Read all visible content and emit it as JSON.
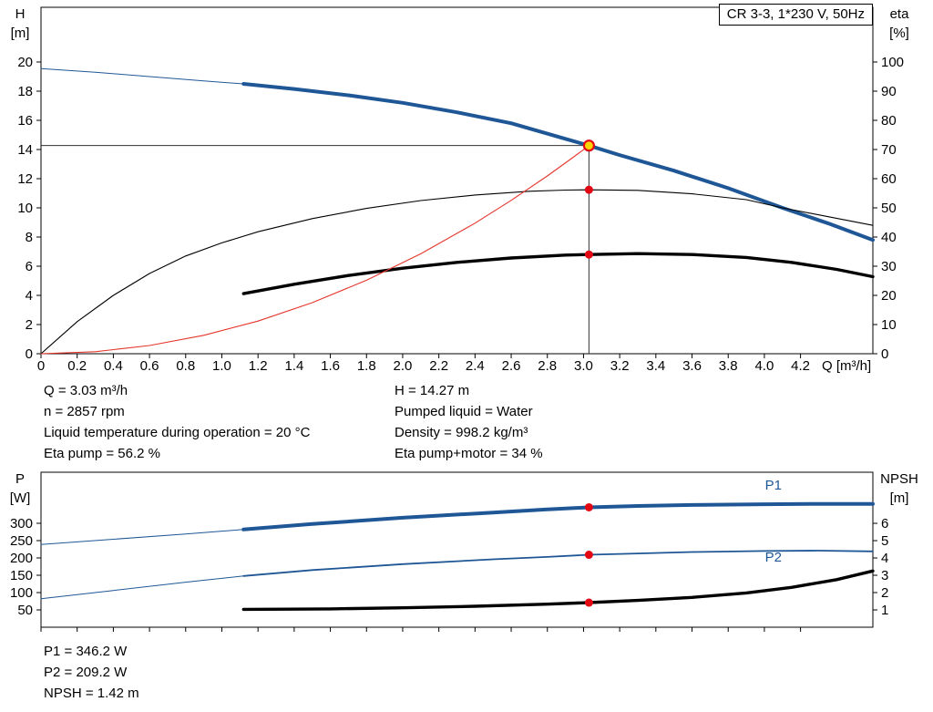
{
  "title_box": "CR 3-3, 1*230 V, 50Hz",
  "info_top": {
    "left": [
      "Q = 3.03 m³/h",
      "n = 2857 rpm",
      "Liquid temperature during operation = 20 °C",
      "Eta pump = 56.2 %"
    ],
    "right": [
      "H = 14.27 m",
      "Pumped liquid = Water",
      "Density = 998.2 kg/m³",
      "Eta pump+motor = 34 %"
    ]
  },
  "info_bottom": [
    "P1 = 346.2 W",
    "P2 = 209.2 W",
    "NPSH = 1.42 m"
  ],
  "colors": {
    "curve_blue": "#1f5796",
    "curve_black": "#000000",
    "curve_red": "#e5352b",
    "marker_red": "#e30613",
    "marker_yellow": "#ffd500",
    "crosshair": "#333333"
  },
  "chart_data": [
    {
      "type": "line",
      "name": "hq-eta-chart",
      "title": "CR 3-3, 1*230 V, 50Hz",
      "x_axis": {
        "label": "Q [m³/h]",
        "min": 0,
        "max": 4.6,
        "show_labels": true,
        "ticks": [
          0,
          0.2,
          0.4,
          0.6,
          0.8,
          1.0,
          1.2,
          1.4,
          1.6,
          1.8,
          2.0,
          2.2,
          2.4,
          2.6,
          2.8,
          3.0,
          3.2,
          3.4,
          3.6,
          3.8,
          4.0,
          4.2
        ]
      },
      "y_left": {
        "label_lines": [
          "H",
          "[m]"
        ],
        "min": 0,
        "max": 23.75,
        "ticks": [
          0,
          2,
          4,
          6,
          8,
          10,
          12,
          14,
          16,
          18,
          20
        ]
      },
      "y_right": {
        "label_lines": [
          "eta",
          "[%]"
        ],
        "min": 0,
        "max": 118.75,
        "ticks": [
          0,
          10,
          20,
          30,
          40,
          50,
          60,
          70,
          80,
          90,
          100
        ]
      },
      "series": [
        {
          "name": "head-curve-extension",
          "axis": "left",
          "color": "#1f5796",
          "width": 1,
          "points": [
            [
              0,
              19.55
            ],
            [
              0.3,
              19.3
            ],
            [
              0.6,
              19.0
            ],
            [
              0.9,
              18.7
            ],
            [
              1.12,
              18.5
            ]
          ]
        },
        {
          "name": "head-curve",
          "axis": "left",
          "color": "#1f5796",
          "width": 4,
          "points": [
            [
              1.12,
              18.5
            ],
            [
              1.4,
              18.15
            ],
            [
              1.7,
              17.72
            ],
            [
              2.0,
              17.2
            ],
            [
              2.3,
              16.55
            ],
            [
              2.6,
              15.8
            ],
            [
              2.9,
              14.73
            ],
            [
              3.03,
              14.27
            ],
            [
              3.2,
              13.62
            ],
            [
              3.5,
              12.55
            ],
            [
              3.8,
              11.35
            ],
            [
              4.1,
              10.0
            ],
            [
              4.35,
              8.95
            ],
            [
              4.6,
              7.8
            ]
          ]
        },
        {
          "name": "eta-pump-curve",
          "axis": "right",
          "color": "#000000",
          "width": 1.1,
          "points": [
            [
              0,
              0
            ],
            [
              0.2,
              11
            ],
            [
              0.4,
              20
            ],
            [
              0.6,
              27.5
            ],
            [
              0.8,
              33.5
            ],
            [
              1.0,
              38
            ],
            [
              1.2,
              41.8
            ],
            [
              1.5,
              46.3
            ],
            [
              1.8,
              49.8
            ],
            [
              2.1,
              52.5
            ],
            [
              2.4,
              54.4
            ],
            [
              2.7,
              55.7
            ],
            [
              2.9,
              56.1
            ],
            [
              3.03,
              56.2
            ],
            [
              3.3,
              56.0
            ],
            [
              3.6,
              54.8
            ],
            [
              3.9,
              52.8
            ],
            [
              4.1,
              50.0
            ],
            [
              4.35,
              47.0
            ],
            [
              4.6,
              44.0
            ]
          ]
        },
        {
          "name": "eta-pump-motor-curve",
          "axis": "right",
          "color": "#000000",
          "width": 3.4,
          "points": [
            [
              1.12,
              20.6
            ],
            [
              1.4,
              23.8
            ],
            [
              1.7,
              26.8
            ],
            [
              2.0,
              29.3
            ],
            [
              2.3,
              31.3
            ],
            [
              2.6,
              32.8
            ],
            [
              2.9,
              33.8
            ],
            [
              3.03,
              34.0
            ],
            [
              3.3,
              34.3
            ],
            [
              3.6,
              34.0
            ],
            [
              3.9,
              33.0
            ],
            [
              4.15,
              31.3
            ],
            [
              4.4,
              28.9
            ],
            [
              4.6,
              26.4
            ]
          ]
        },
        {
          "name": "system-curve",
          "axis": "left",
          "color": "#e5352b",
          "width": 1.1,
          "points": [
            [
              0,
              0
            ],
            [
              0.3,
              0.14
            ],
            [
              0.6,
              0.56
            ],
            [
              0.9,
              1.26
            ],
            [
              1.2,
              2.24
            ],
            [
              1.5,
              3.5
            ],
            [
              1.8,
              5.04
            ],
            [
              2.1,
              6.85
            ],
            [
              2.4,
              8.95
            ],
            [
              2.6,
              10.51
            ],
            [
              2.8,
              12.19
            ],
            [
              2.95,
              13.53
            ],
            [
              3.03,
              14.27
            ]
          ]
        }
      ],
      "crosshair": {
        "q": 3.03,
        "value": 14.27,
        "axis": "left"
      },
      "markers": [
        {
          "name": "duty-point-marker",
          "q": 3.03,
          "value": 14.27,
          "axis": "left",
          "r": 5.5,
          "fill": "#ffd500",
          "stroke": "#e30613",
          "stroke_width": 2.2
        },
        {
          "name": "eta-pump-point-marker",
          "q": 3.03,
          "value": 56.2,
          "axis": "right",
          "r": 4.5,
          "fill": "#e30613"
        },
        {
          "name": "eta-pump-motor-point-marker",
          "q": 3.03,
          "value": 34,
          "axis": "right",
          "r": 4.5,
          "fill": "#e30613"
        }
      ],
      "curve_labels": []
    },
    {
      "type": "line",
      "name": "power-npsh-chart",
      "x_axis": {
        "label": "",
        "min": 0,
        "max": 4.6,
        "show_labels": false,
        "ticks": [
          0,
          0.2,
          0.4,
          0.6,
          0.8,
          1.0,
          1.2,
          1.4,
          1.6,
          1.8,
          2.0,
          2.2,
          2.4,
          2.6,
          2.8,
          3.0,
          3.2,
          3.4,
          3.6,
          3.8,
          4.0,
          4.2
        ]
      },
      "y_left": {
        "label_lines": [
          "P",
          "[W]"
        ],
        "min": 0,
        "max": 447.4,
        "ticks": [
          50,
          100,
          150,
          200,
          250,
          300
        ]
      },
      "y_right": {
        "label_lines": [
          "NPSH",
          "[m]"
        ],
        "min": 0,
        "max": 8.95,
        "ticks": [
          1,
          2,
          3,
          4,
          5,
          6
        ]
      },
      "series": [
        {
          "name": "p1-curve-extension",
          "axis": "left",
          "color": "#1f5796",
          "width": 1,
          "points": [
            [
              0,
              239
            ],
            [
              0.4,
              254
            ],
            [
              0.8,
              269
            ],
            [
              1.12,
              282
            ]
          ]
        },
        {
          "name": "p1-curve",
          "axis": "left",
          "color": "#1f5796",
          "width": 4,
          "points": [
            [
              1.12,
              282
            ],
            [
              1.5,
              298
            ],
            [
              2.0,
              316
            ],
            [
              2.5,
              331
            ],
            [
              2.8,
              340
            ],
            [
              3.03,
              346.2
            ],
            [
              3.3,
              350
            ],
            [
              3.6,
              353
            ],
            [
              4.0,
              355
            ],
            [
              4.3,
              356
            ],
            [
              4.6,
              356
            ]
          ]
        },
        {
          "name": "p2-curve-extension",
          "axis": "left",
          "color": "#1f5796",
          "width": 1,
          "points": [
            [
              0,
              82
            ],
            [
              0.4,
              106
            ],
            [
              0.8,
              130
            ],
            [
              1.12,
              148
            ]
          ]
        },
        {
          "name": "p2-curve",
          "axis": "left",
          "color": "#1f5796",
          "width": 1.8,
          "points": [
            [
              1.12,
              148
            ],
            [
              1.5,
              165
            ],
            [
              2.0,
              182
            ],
            [
              2.5,
              196
            ],
            [
              2.8,
              203
            ],
            [
              3.03,
              209.2
            ],
            [
              3.3,
              213
            ],
            [
              3.6,
              217
            ],
            [
              4.0,
              220
            ],
            [
              4.3,
              221
            ],
            [
              4.6,
              219
            ]
          ]
        },
        {
          "name": "npsh-curve",
          "axis": "right",
          "color": "#000000",
          "width": 3.4,
          "points": [
            [
              1.12,
              1.03
            ],
            [
              1.6,
              1.06
            ],
            [
              2.0,
              1.12
            ],
            [
              2.4,
              1.21
            ],
            [
              2.8,
              1.33
            ],
            [
              3.03,
              1.42
            ],
            [
              3.3,
              1.55
            ],
            [
              3.6,
              1.72
            ],
            [
              3.9,
              1.98
            ],
            [
              4.15,
              2.3
            ],
            [
              4.4,
              2.75
            ],
            [
              4.6,
              3.25
            ]
          ]
        }
      ],
      "markers": [
        {
          "name": "p1-point-marker",
          "q": 3.03,
          "value": 346.2,
          "axis": "left",
          "r": 4.5,
          "fill": "#e30613"
        },
        {
          "name": "p2-point-marker",
          "q": 3.03,
          "value": 209.2,
          "axis": "left",
          "r": 4.5,
          "fill": "#e30613"
        },
        {
          "name": "npsh-point-marker",
          "q": 3.03,
          "value": 1.42,
          "axis": "right",
          "r": 4.5,
          "fill": "#e30613"
        }
      ],
      "curve_labels": [
        {
          "text": "P1",
          "q": 4.05,
          "value": 398,
          "axis": "left",
          "color": "#1f5796"
        },
        {
          "text": "P2",
          "q": 4.05,
          "value": 190,
          "axis": "left",
          "color": "#1f5796"
        }
      ]
    }
  ]
}
